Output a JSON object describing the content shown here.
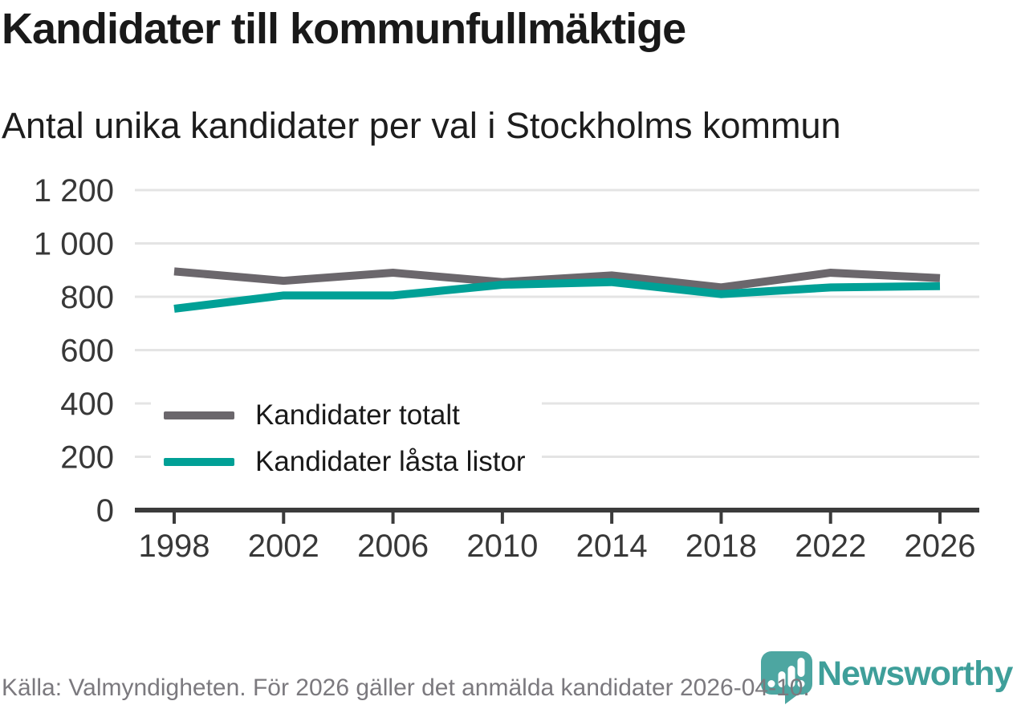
{
  "header": {
    "title": "Kandidater till kommunfullmäktige",
    "subtitle": "Antal unika kandidater per val i Stockholms kommun"
  },
  "chart_data": {
    "type": "line",
    "x": [
      1998,
      2002,
      2006,
      2010,
      2014,
      2018,
      2022,
      2026
    ],
    "x_labels": [
      "1998",
      "2002",
      "2006",
      "2010",
      "2014",
      "2018",
      "2022",
      "2026"
    ],
    "series": [
      {
        "name": "Kandidater totalt",
        "color": "#6b676c",
        "values": [
          895,
          860,
          890,
          855,
          880,
          835,
          890,
          870
        ]
      },
      {
        "name": "Kandidater låsta listor",
        "color": "#00a096",
        "values": [
          755,
          805,
          805,
          845,
          855,
          810,
          835,
          840
        ]
      }
    ],
    "ylim": [
      0,
      1200
    ],
    "y_ticks": [
      {
        "value": 0,
        "label": "0"
      },
      {
        "value": 200,
        "label": "200"
      },
      {
        "value": 400,
        "label": "400"
      },
      {
        "value": 600,
        "label": "600"
      },
      {
        "value": 800,
        "label": "800"
      },
      {
        "value": 1000,
        "label": "1 000"
      },
      {
        "value": 1200,
        "label": "1 200"
      }
    ],
    "grid": "horizontal-only",
    "legend_position": "inside-left"
  },
  "footer": {
    "source": "Källa: Valmyndigheten. För 2026 gäller det anmälda kandidater 2026-04-10."
  },
  "logo": {
    "text": "Newsworthy",
    "icon": "bar-chart-exclamation-pin-icon",
    "icon_color": "#4da6a1",
    "text_color": "#3f9f9a"
  },
  "colors": {
    "grid": "#e4e4e4",
    "axis": "#3b3b3b",
    "tick_label": "#383838",
    "source_text": "#7b797e",
    "background": "#ffffff"
  }
}
